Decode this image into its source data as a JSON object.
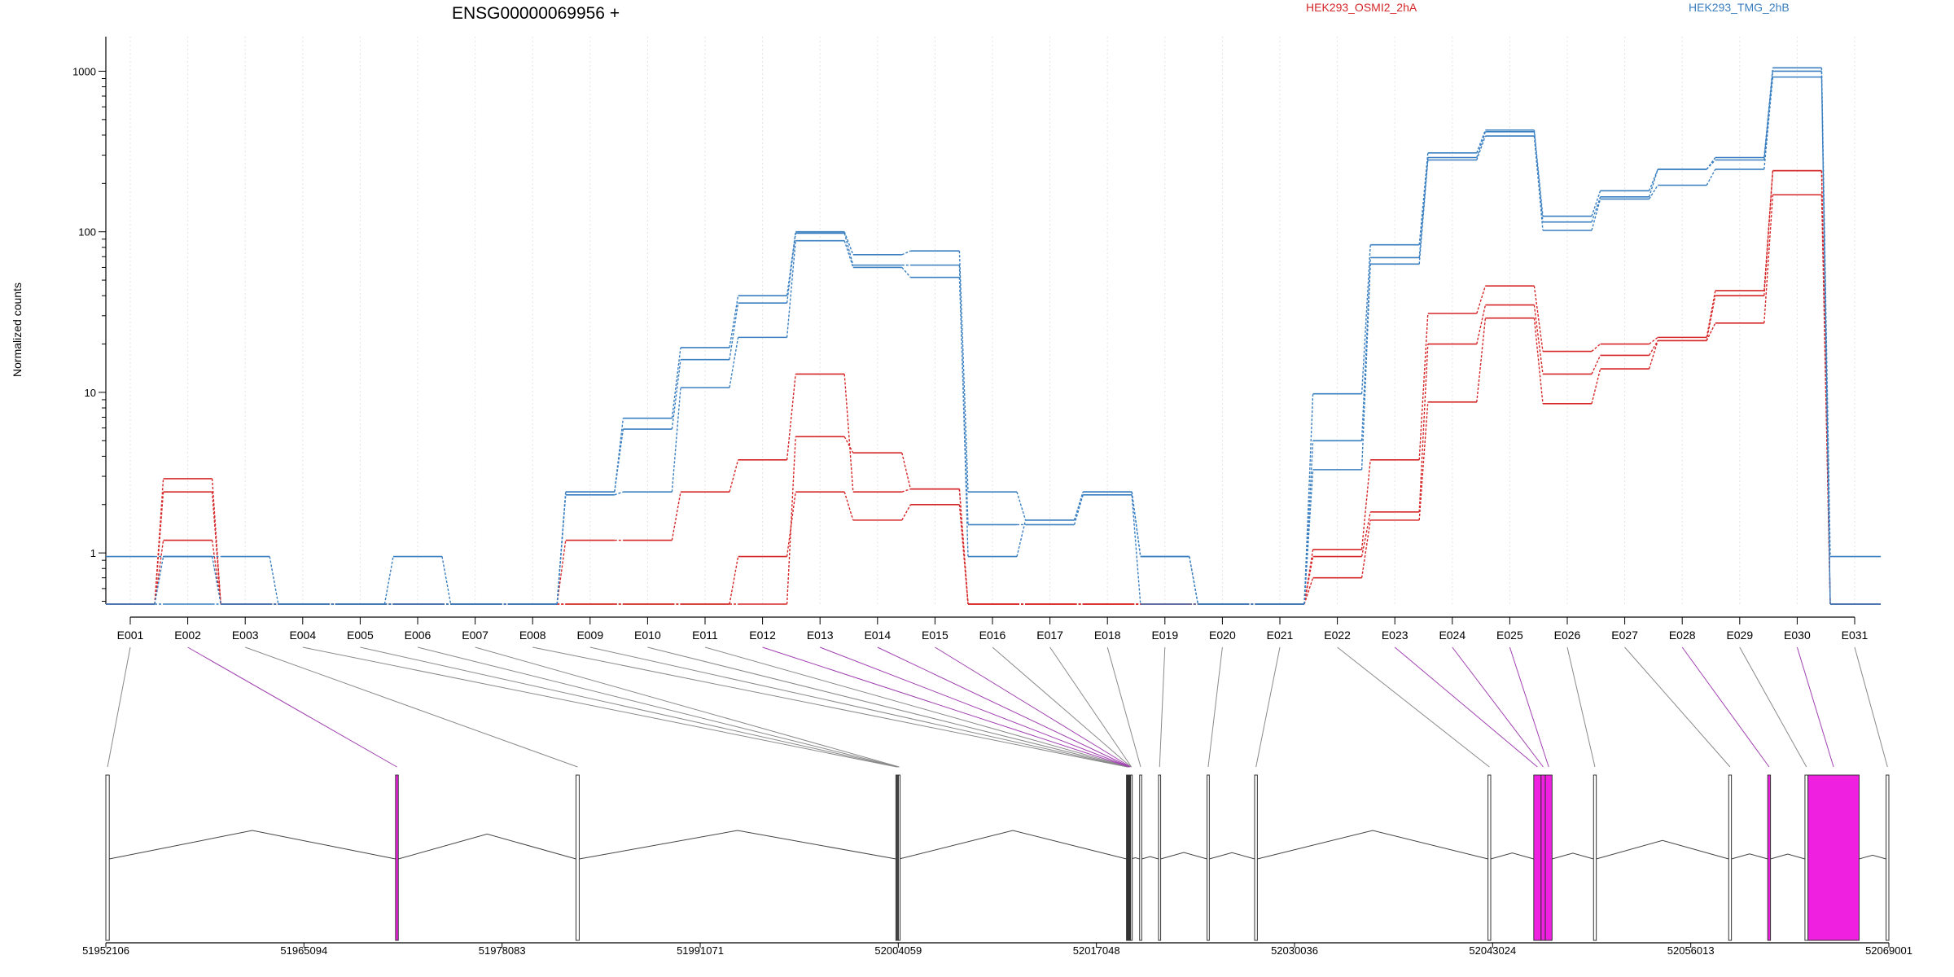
{
  "chart_data": {
    "type": "line",
    "title": "ENSG00000069956 +",
    "ylabel": "Normalized counts",
    "xlabel": "",
    "yscale": "log",
    "ylim": [
      0.48,
      1300
    ],
    "yticks": [
      1,
      10,
      100,
      1000
    ],
    "ytick_labels": [
      "1",
      "10",
      "100",
      "1000"
    ],
    "grid": "vertical dotted lines at exon centers",
    "legend_position": "top",
    "categories": [
      "E001",
      "E002",
      "E003",
      "E004",
      "E005",
      "E006",
      "E007",
      "E008",
      "E009",
      "E010",
      "E011",
      "E012",
      "E013",
      "E014",
      "E015",
      "E016",
      "E017",
      "E018",
      "E019",
      "E020",
      "E021",
      "E022",
      "E023",
      "E024",
      "E025",
      "E026",
      "E027",
      "E028",
      "E029",
      "E030",
      "E031"
    ],
    "groups": [
      {
        "name": "HEK293_OSMI2_2hA",
        "color": "#d62728"
      },
      {
        "name": "HEK293_TMG_2hB",
        "color": "#3a7fc0"
      }
    ],
    "series": [
      {
        "group": 0,
        "values": [
          0.48,
          2.9,
          0.48,
          0.48,
          0.48,
          0.48,
          0.48,
          0.48,
          0.48,
          0.48,
          0.48,
          0.48,
          5.3,
          4.2,
          2.5,
          0.48,
          0.48,
          0.48,
          0.48,
          0.48,
          0.48,
          1.05,
          3.8,
          31,
          46,
          18,
          20,
          22,
          43,
          240,
          0.48
        ]
      },
      {
        "group": 0,
        "values": [
          0.48,
          2.4,
          0.48,
          0.48,
          0.48,
          0.48,
          0.48,
          0.48,
          1.2,
          1.2,
          2.4,
          3.8,
          13,
          2.4,
          2.5,
          0.48,
          0.48,
          0.48,
          0.48,
          0.48,
          0.48,
          0.95,
          1.8,
          20,
          35,
          13,
          17,
          21,
          40,
          240,
          0.48
        ]
      },
      {
        "group": 0,
        "values": [
          0.48,
          1.2,
          0.48,
          0.48,
          0.48,
          0.48,
          0.48,
          0.48,
          0.48,
          0.48,
          0.48,
          0.95,
          2.4,
          1.6,
          2.0,
          0.48,
          0.48,
          0.48,
          0.48,
          0.48,
          0.48,
          0.7,
          1.6,
          8.7,
          29,
          8.5,
          14,
          21,
          27,
          170,
          0.48
        ]
      },
      {
        "group": 1,
        "values": [
          0.95,
          0.95,
          0.95,
          0.48,
          0.48,
          0.95,
          0.48,
          0.48,
          2.4,
          6.9,
          19,
          40,
          100,
          72,
          76,
          2.4,
          1.6,
          2.4,
          0.95,
          0.48,
          0.48,
          9.8,
          83,
          310,
          430,
          125,
          180,
          245,
          290,
          1050,
          0.95
        ]
      },
      {
        "group": 1,
        "values": [
          0.48,
          0.95,
          0.48,
          0.48,
          0.48,
          0.48,
          0.48,
          0.48,
          2.4,
          5.9,
          16,
          36,
          98,
          62,
          62,
          0.95,
          1.6,
          2.4,
          0.95,
          0.48,
          0.48,
          5.0,
          69,
          290,
          420,
          115,
          165,
          245,
          280,
          1000,
          0.48
        ]
      },
      {
        "group": 1,
        "values": [
          0.48,
          0.48,
          0.48,
          0.48,
          0.48,
          0.48,
          0.48,
          0.48,
          2.3,
          2.4,
          10.7,
          22,
          88,
          60,
          52,
          1.5,
          1.5,
          2.3,
          0.48,
          0.48,
          0.48,
          3.3,
          63,
          280,
          395,
          102,
          160,
          195,
          245,
          920,
          0.48
        ]
      }
    ],
    "genomic_axis": {
      "tick_labels": [
        "51952106",
        "51965094",
        "51978083",
        "51991071",
        "52004059",
        "52017048",
        "52030036",
        "52043024",
        "52056013",
        "52069001"
      ],
      "ticks": [
        51952106,
        51965094,
        51978083,
        51991071,
        52004059,
        52017048,
        52030036,
        52043024,
        52056013,
        52069001
      ],
      "range": [
        51952106,
        52069001
      ]
    },
    "exons": [
      {
        "id": "E001",
        "start": 51952106,
        "end": 51952330,
        "significant": false
      },
      {
        "id": "E002",
        "start": 51971100,
        "end": 51971280,
        "significant": true
      },
      {
        "id": "E003",
        "start": 51982930,
        "end": 51983140,
        "significant": false
      },
      {
        "id": "E004",
        "start": 52003900,
        "end": 52003960,
        "significant": false
      },
      {
        "id": "E005",
        "start": 52003960,
        "end": 52004010,
        "significant": false
      },
      {
        "id": "E006",
        "start": 52004010,
        "end": 52004070,
        "significant": false
      },
      {
        "id": "E007",
        "start": 52004070,
        "end": 52004120,
        "significant": false
      },
      {
        "id": "E008",
        "start": 52019020,
        "end": 52019050,
        "significant": false
      },
      {
        "id": "E009",
        "start": 52019050,
        "end": 52019080,
        "significant": false
      },
      {
        "id": "E010",
        "start": 52019080,
        "end": 52019110,
        "significant": false
      },
      {
        "id": "E011",
        "start": 52019110,
        "end": 52019140,
        "significant": false
      },
      {
        "id": "E012",
        "start": 52019140,
        "end": 52019170,
        "significant": true
      },
      {
        "id": "E013",
        "start": 52019170,
        "end": 52019200,
        "significant": true
      },
      {
        "id": "E014",
        "start": 52019200,
        "end": 52019230,
        "significant": true
      },
      {
        "id": "E015",
        "start": 52019230,
        "end": 52019260,
        "significant": true
      },
      {
        "id": "E016",
        "start": 52019260,
        "end": 52019290,
        "significant": false
      },
      {
        "id": "E017",
        "start": 52019290,
        "end": 52019320,
        "significant": false
      },
      {
        "id": "E018",
        "start": 52019880,
        "end": 52020020,
        "significant": false
      },
      {
        "id": "E019",
        "start": 52021120,
        "end": 52021260,
        "significant": false
      },
      {
        "id": "E020",
        "start": 52024300,
        "end": 52024450,
        "significant": false
      },
      {
        "id": "E021",
        "start": 52027420,
        "end": 52027600,
        "significant": false
      },
      {
        "id": "E022",
        "start": 52042720,
        "end": 52042900,
        "significant": false
      },
      {
        "id": "E023",
        "start": 52045720,
        "end": 52046200,
        "significant": true
      },
      {
        "id": "E024",
        "start": 52046200,
        "end": 52046480,
        "significant": true
      },
      {
        "id": "E025",
        "start": 52046480,
        "end": 52046920,
        "significant": true
      },
      {
        "id": "E026",
        "start": 52049640,
        "end": 52049820,
        "significant": false
      },
      {
        "id": "E027",
        "start": 52058500,
        "end": 52058680,
        "significant": false
      },
      {
        "id": "E028",
        "start": 52061060,
        "end": 52061240,
        "significant": true
      },
      {
        "id": "E029",
        "start": 52063500,
        "end": 52063700,
        "significant": false
      },
      {
        "id": "E030",
        "start": 52063700,
        "end": 52067050,
        "significant": true
      },
      {
        "id": "E031",
        "start": 52068820,
        "end": 52069001,
        "significant": false
      }
    ]
  }
}
